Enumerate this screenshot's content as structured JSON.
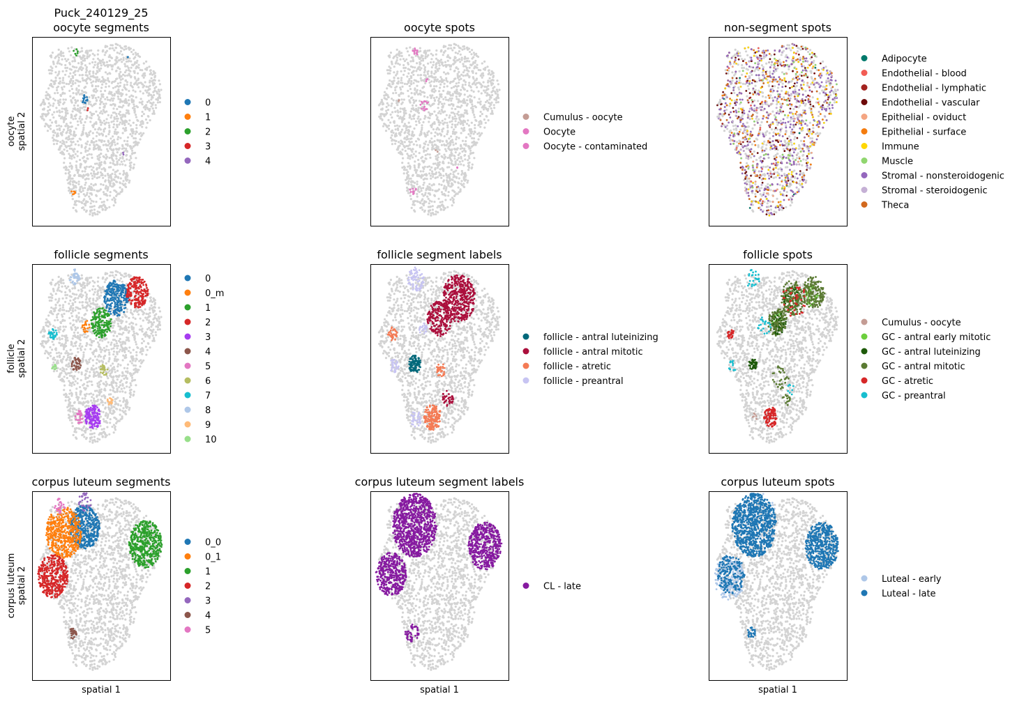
{
  "figure_title": "Puck_240129_25",
  "axis_labels": {
    "x": "spatial 1",
    "row_ylabels": [
      [
        "oocyte",
        "spatial 2"
      ],
      [
        "follicle",
        "spatial 2"
      ],
      [
        "corpus luteum",
        "spatial 2"
      ]
    ]
  },
  "colors": {
    "background_spots": "#d3d3d3",
    "frame": "#000000"
  },
  "chart_data": [
    {
      "type": "scatter",
      "row": 0,
      "col": 0,
      "title": "oocyte segments",
      "xlabel": "",
      "ylabel": "oocyte\nspatial 2",
      "legend_placement": "right",
      "series": [
        {
          "name": "0",
          "color": "#1f77b4",
          "clusters": [
            {
              "x": 0.385,
              "y": 0.33,
              "r": 0.025,
              "n": 14
            },
            {
              "x": 0.7,
              "y": 0.11,
              "r": 0.01,
              "n": 2
            }
          ]
        },
        {
          "name": "1",
          "color": "#ff7f0e",
          "clusters": [
            {
              "x": 0.3,
              "y": 0.82,
              "r": 0.02,
              "n": 6
            }
          ]
        },
        {
          "name": "2",
          "color": "#2ca02c",
          "clusters": [
            {
              "x": 0.32,
              "y": 0.08,
              "r": 0.02,
              "n": 6
            }
          ]
        },
        {
          "name": "3",
          "color": "#d62728",
          "clusters": [
            {
              "x": 0.4,
              "y": 0.38,
              "r": 0.01,
              "n": 2
            }
          ]
        },
        {
          "name": "4",
          "color": "#9467bd",
          "clusters": [
            {
              "x": 0.66,
              "y": 0.62,
              "r": 0.01,
              "n": 2
            }
          ]
        }
      ]
    },
    {
      "type": "scatter",
      "row": 0,
      "col": 1,
      "title": "oocyte spots",
      "xlabel": "",
      "ylabel": "",
      "legend_placement": "right",
      "series": [
        {
          "name": "Cumulus - oocyte",
          "color": "#c49c94",
          "clusters": [
            {
              "x": 0.48,
              "y": 0.6,
              "r": 0.01,
              "n": 2
            },
            {
              "x": 0.2,
              "y": 0.34,
              "r": 0.01,
              "n": 2
            }
          ]
        },
        {
          "name": "Oocyte",
          "color": "#e377c2",
          "clusters": [
            {
              "x": 0.33,
              "y": 0.08,
              "r": 0.025,
              "n": 10
            },
            {
              "x": 0.39,
              "y": 0.36,
              "r": 0.03,
              "n": 14
            },
            {
              "x": 0.31,
              "y": 0.81,
              "r": 0.025,
              "n": 10
            },
            {
              "x": 0.41,
              "y": 0.23,
              "r": 0.01,
              "n": 3
            }
          ]
        },
        {
          "name": "Oocyte - contaminated",
          "color": "#e377c2",
          "clusters": [
            {
              "x": 0.62,
              "y": 0.69,
              "r": 0.01,
              "n": 2
            }
          ]
        }
      ]
    },
    {
      "type": "scatter",
      "row": 0,
      "col": 2,
      "title": "non-segment spots",
      "xlabel": "",
      "ylabel": "",
      "legend_placement": "right",
      "series": [
        {
          "name": "Adipocyte",
          "color": "#00796b",
          "weight": 1
        },
        {
          "name": "Endothelial - blood",
          "color": "#f25c54",
          "weight": 2
        },
        {
          "name": "Endothelial - lymphatic",
          "color": "#a3231f",
          "weight": 2
        },
        {
          "name": "Endothelial - vascular",
          "color": "#6d0a0a",
          "weight": 10
        },
        {
          "name": "Epithelial - oviduct",
          "color": "#f4a582",
          "weight": 2
        },
        {
          "name": "Epithelial - surface",
          "color": "#f47c0e",
          "weight": 6
        },
        {
          "name": "Immune",
          "color": "#ffd700",
          "weight": 7
        },
        {
          "name": "Muscle",
          "color": "#90d66f",
          "weight": 4
        },
        {
          "name": "Stromal - nonsteroidogenic",
          "color": "#9467bd",
          "weight": 18
        },
        {
          "name": "Stromal - steroidogenic",
          "color": "#c5b0d5",
          "weight": 5
        },
        {
          "name": "Theca",
          "color": "#d2691e",
          "weight": 3
        }
      ]
    },
    {
      "type": "scatter",
      "row": 1,
      "col": 0,
      "title": "follicle segments",
      "xlabel": "",
      "ylabel": "follicle\nspatial 2",
      "legend_placement": "right",
      "series": [
        {
          "name": "0",
          "color": "#1f77b4",
          "clusters": [
            {
              "x": 0.61,
              "y": 0.18,
              "r": 0.09,
              "n": 260
            }
          ]
        },
        {
          "name": "0_m",
          "color": "#ff7f0e",
          "clusters": [
            {
              "x": 0.39,
              "y": 0.33,
              "r": 0.03,
              "n": 18
            }
          ]
        },
        {
          "name": "1",
          "color": "#2ca02c",
          "clusters": [
            {
              "x": 0.5,
              "y": 0.31,
              "r": 0.075,
              "n": 180
            }
          ]
        },
        {
          "name": "2",
          "color": "#d62728",
          "clusters": [
            {
              "x": 0.76,
              "y": 0.15,
              "r": 0.08,
              "n": 200
            }
          ]
        },
        {
          "name": "3",
          "color": "#a63cf0",
          "clusters": [
            {
              "x": 0.44,
              "y": 0.81,
              "r": 0.06,
              "n": 150
            }
          ]
        },
        {
          "name": "4",
          "color": "#8c564b",
          "clusters": [
            {
              "x": 0.32,
              "y": 0.53,
              "r": 0.035,
              "n": 45
            }
          ]
        },
        {
          "name": "5",
          "color": "#e377c2",
          "clusters": [
            {
              "x": 0.34,
              "y": 0.81,
              "r": 0.035,
              "n": 25
            }
          ]
        },
        {
          "name": "6",
          "color": "#b5bd61",
          "clusters": [
            {
              "x": 0.52,
              "y": 0.56,
              "r": 0.03,
              "n": 25
            }
          ]
        },
        {
          "name": "7",
          "color": "#17becf",
          "clusters": [
            {
              "x": 0.15,
              "y": 0.37,
              "r": 0.03,
              "n": 30
            }
          ]
        },
        {
          "name": "8",
          "color": "#aec7e8",
          "clusters": [
            {
              "x": 0.31,
              "y": 0.07,
              "r": 0.04,
              "n": 35
            }
          ]
        },
        {
          "name": "9",
          "color": "#ffbb78",
          "clusters": [
            {
              "x": 0.56,
              "y": 0.73,
              "r": 0.025,
              "n": 15
            }
          ]
        },
        {
          "name": "10",
          "color": "#98df8a",
          "clusters": [
            {
              "x": 0.16,
              "y": 0.54,
              "r": 0.02,
              "n": 12
            }
          ]
        }
      ]
    },
    {
      "type": "scatter",
      "row": 1,
      "col": 1,
      "title": "follicle segment labels",
      "xlabel": "",
      "ylabel": "",
      "legend_placement": "right",
      "series": [
        {
          "name": "follicle - antral luteinizing",
          "color": "#00687a",
          "clusters": [
            {
              "x": 0.32,
              "y": 0.53,
              "r": 0.045,
              "n": 90
            }
          ]
        },
        {
          "name": "follicle - antral mitotic",
          "color": "#ab0f3c",
          "clusters": [
            {
              "x": 0.64,
              "y": 0.18,
              "r": 0.12,
              "n": 420
            },
            {
              "x": 0.5,
              "y": 0.29,
              "r": 0.09,
              "n": 200
            },
            {
              "x": 0.56,
              "y": 0.71,
              "r": 0.04,
              "n": 35
            }
          ]
        },
        {
          "name": "follicle - atretic",
          "color": "#f47b55",
          "clusters": [
            {
              "x": 0.45,
              "y": 0.81,
              "r": 0.065,
              "n": 160
            },
            {
              "x": 0.16,
              "y": 0.37,
              "r": 0.035,
              "n": 35
            },
            {
              "x": 0.51,
              "y": 0.56,
              "r": 0.035,
              "n": 30
            }
          ]
        },
        {
          "name": "follicle - preantral",
          "color": "#c7c4f2",
          "clusters": [
            {
              "x": 0.33,
              "y": 0.08,
              "r": 0.06,
              "n": 70
            },
            {
              "x": 0.17,
              "y": 0.54,
              "r": 0.035,
              "n": 30
            },
            {
              "x": 0.33,
              "y": 0.82,
              "r": 0.04,
              "n": 35
            },
            {
              "x": 0.38,
              "y": 0.34,
              "r": 0.03,
              "n": 20
            }
          ]
        }
      ]
    },
    {
      "type": "scatter",
      "row": 1,
      "col": 2,
      "title": "follicle spots",
      "xlabel": "",
      "ylabel": "",
      "legend_placement": "right",
      "series": [
        {
          "name": "Cumulus - oocyte",
          "color": "#c49c94",
          "clusters": [
            {
              "x": 0.33,
              "y": 0.81,
              "r": 0.02,
              "n": 6
            }
          ]
        },
        {
          "name": "GC - antral early mitotic",
          "color": "#6ccf3d",
          "clusters": [
            {
              "x": 0.75,
              "y": 0.17,
              "r": 0.05,
              "n": 30
            },
            {
              "x": 0.5,
              "y": 0.3,
              "r": 0.04,
              "n": 15
            }
          ]
        },
        {
          "name": "GC - antral luteinizing",
          "color": "#1e5a0a",
          "clusters": [
            {
              "x": 0.32,
              "y": 0.53,
              "r": 0.03,
              "n": 40
            },
            {
              "x": 0.5,
              "y": 0.31,
              "r": 0.06,
              "n": 80
            },
            {
              "x": 0.6,
              "y": 0.18,
              "r": 0.06,
              "n": 60
            }
          ]
        },
        {
          "name": "GC - antral mitotic",
          "color": "#5a7a32",
          "clusters": [
            {
              "x": 0.61,
              "y": 0.18,
              "r": 0.09,
              "n": 160
            },
            {
              "x": 0.76,
              "y": 0.15,
              "r": 0.08,
              "n": 160
            },
            {
              "x": 0.5,
              "y": 0.31,
              "r": 0.07,
              "n": 90
            },
            {
              "x": 0.52,
              "y": 0.6,
              "r": 0.06,
              "n": 30
            },
            {
              "x": 0.56,
              "y": 0.72,
              "r": 0.03,
              "n": 14
            }
          ]
        },
        {
          "name": "GC - atretic",
          "color": "#d62728",
          "clusters": [
            {
              "x": 0.45,
              "y": 0.81,
              "r": 0.05,
              "n": 100
            },
            {
              "x": 0.16,
              "y": 0.37,
              "r": 0.025,
              "n": 25
            },
            {
              "x": 0.62,
              "y": 0.19,
              "r": 0.09,
              "n": 40
            }
          ]
        },
        {
          "name": "GC - preantral",
          "color": "#17becf",
          "clusters": [
            {
              "x": 0.32,
              "y": 0.08,
              "r": 0.05,
              "n": 25
            },
            {
              "x": 0.4,
              "y": 0.33,
              "r": 0.05,
              "n": 20
            },
            {
              "x": 0.17,
              "y": 0.54,
              "r": 0.03,
              "n": 12
            },
            {
              "x": 0.6,
              "y": 0.66,
              "r": 0.03,
              "n": 8
            }
          ]
        }
      ]
    },
    {
      "type": "scatter",
      "row": 2,
      "col": 0,
      "title": "corpus luteum segments",
      "xlabel": "spatial 1",
      "ylabel": "corpus luteum\nspatial 2",
      "legend_placement": "right",
      "series": [
        {
          "name": "0_0",
          "color": "#1f77b4",
          "clusters": [
            {
              "x": 0.38,
              "y": 0.19,
              "r": 0.11,
              "n": 420
            }
          ]
        },
        {
          "name": "0_1",
          "color": "#ff7f0e",
          "clusters": [
            {
              "x": 0.23,
              "y": 0.22,
              "r": 0.13,
              "n": 500
            }
          ]
        },
        {
          "name": "1",
          "color": "#2ca02c",
          "clusters": [
            {
              "x": 0.82,
              "y": 0.28,
              "r": 0.12,
              "n": 480
            }
          ]
        },
        {
          "name": "2",
          "color": "#d62728",
          "clusters": [
            {
              "x": 0.15,
              "y": 0.45,
              "r": 0.11,
              "n": 400
            }
          ]
        },
        {
          "name": "3",
          "color": "#9467bd",
          "clusters": [
            {
              "x": 0.38,
              "y": 0.06,
              "r": 0.05,
              "n": 30
            }
          ]
        },
        {
          "name": "4",
          "color": "#8c564b",
          "clusters": [
            {
              "x": 0.3,
              "y": 0.75,
              "r": 0.03,
              "n": 25
            }
          ]
        },
        {
          "name": "5",
          "color": "#e377c2",
          "clusters": [
            {
              "x": 0.2,
              "y": 0.08,
              "r": 0.04,
              "n": 30
            }
          ]
        }
      ]
    },
    {
      "type": "scatter",
      "row": 2,
      "col": 1,
      "title": "corpus luteum segment labels",
      "xlabel": "spatial 1",
      "ylabel": "",
      "legend_placement": "right",
      "series": [
        {
          "name": "CL - late",
          "color": "#861aa0",
          "clusters": [
            {
              "x": 0.32,
              "y": 0.18,
              "r": 0.16,
              "n": 900
            },
            {
              "x": 0.83,
              "y": 0.29,
              "r": 0.12,
              "n": 480
            },
            {
              "x": 0.15,
              "y": 0.44,
              "r": 0.11,
              "n": 400
            },
            {
              "x": 0.3,
              "y": 0.75,
              "r": 0.05,
              "n": 45
            }
          ]
        }
      ]
    },
    {
      "type": "scatter",
      "row": 2,
      "col": 2,
      "title": "corpus luteum spots",
      "xlabel": "spatial 1",
      "ylabel": "",
      "legend_placement": "right",
      "series": [
        {
          "name": "Luteal - early",
          "color": "#aec7e8",
          "clusters": [
            {
              "x": 0.15,
              "y": 0.46,
              "r": 0.11,
              "n": 220
            },
            {
              "x": 0.35,
              "y": 0.15,
              "r": 0.14,
              "n": 80
            }
          ]
        },
        {
          "name": "Luteal - late",
          "color": "#1f77b4",
          "clusters": [
            {
              "x": 0.33,
              "y": 0.18,
              "r": 0.16,
              "n": 900
            },
            {
              "x": 0.82,
              "y": 0.29,
              "r": 0.12,
              "n": 480
            },
            {
              "x": 0.16,
              "y": 0.44,
              "r": 0.1,
              "n": 180
            },
            {
              "x": 0.31,
              "y": 0.75,
              "r": 0.03,
              "n": 25
            }
          ]
        }
      ]
    }
  ]
}
